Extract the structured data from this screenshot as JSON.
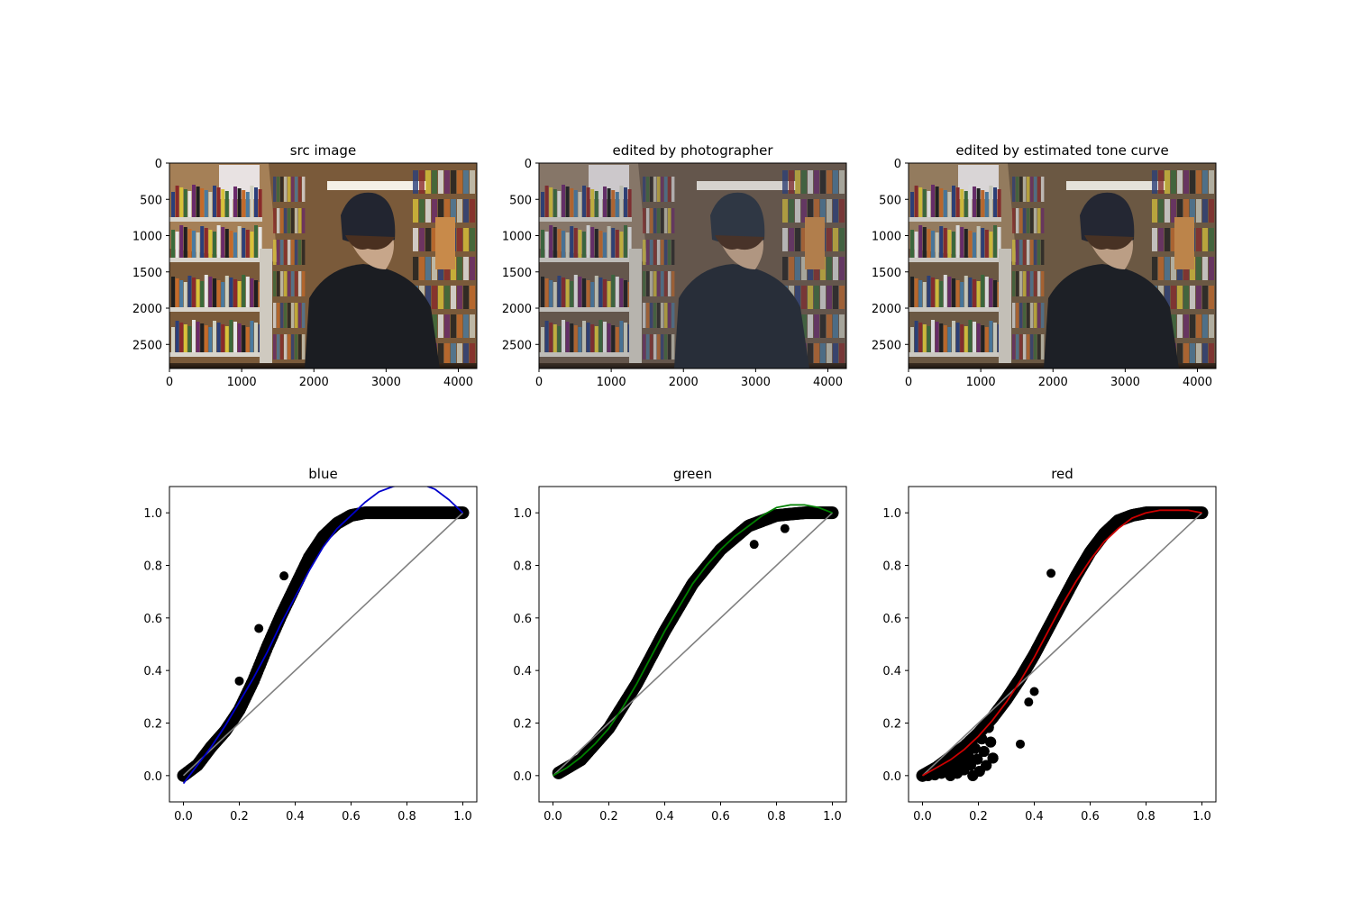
{
  "images": [
    {
      "title": "src image",
      "xticks": [
        "0",
        "1000",
        "2000",
        "3000",
        "4000"
      ],
      "yticks": [
        "0",
        "500",
        "1000",
        "1500",
        "2000",
        "2500"
      ],
      "xlim": [
        0,
        4256
      ],
      "ylim": [
        2832,
        0
      ],
      "tone": "src"
    },
    {
      "title": "edited by photographer",
      "xticks": [
        "0",
        "1000",
        "2000",
        "3000",
        "4000"
      ],
      "yticks": [
        "0",
        "500",
        "1000",
        "1500",
        "2000",
        "2500"
      ],
      "xlim": [
        0,
        4256
      ],
      "ylim": [
        2832,
        0
      ],
      "tone": "photographer"
    },
    {
      "title": "edited by estimated tone curve",
      "xticks": [
        "0",
        "1000",
        "2000",
        "3000",
        "4000"
      ],
      "yticks": [
        "0",
        "500",
        "1000",
        "1500",
        "2000",
        "2500"
      ],
      "xlim": [
        0,
        4256
      ],
      "ylim": [
        2832,
        0
      ],
      "tone": "estimated"
    }
  ],
  "chart_data": [
    {
      "type": "scatter",
      "title": "blue",
      "xlim": [
        -0.05,
        1.05
      ],
      "ylim": [
        -0.1,
        1.1
      ],
      "xticks": [
        "0.0",
        "0.2",
        "0.4",
        "0.6",
        "0.8",
        "1.0"
      ],
      "yticks": [
        "0.0",
        "0.2",
        "0.4",
        "0.6",
        "0.8",
        "1.0"
      ],
      "curve_color": "#0000cc",
      "scatter_color": "#000000",
      "identity_color": "#808080",
      "scatter_band": [
        [
          0.0,
          0.0
        ],
        [
          0.05,
          0.04
        ],
        [
          0.1,
          0.11
        ],
        [
          0.15,
          0.17
        ],
        [
          0.2,
          0.25
        ],
        [
          0.25,
          0.36
        ],
        [
          0.3,
          0.49
        ],
        [
          0.35,
          0.61
        ],
        [
          0.4,
          0.72
        ],
        [
          0.45,
          0.83
        ],
        [
          0.5,
          0.91
        ],
        [
          0.55,
          0.96
        ],
        [
          0.6,
          0.99
        ],
        [
          0.65,
          1.0
        ],
        [
          0.7,
          1.0
        ],
        [
          0.8,
          1.0
        ],
        [
          0.9,
          1.0
        ],
        [
          1.0,
          1.0
        ]
      ],
      "outliers": [
        [
          0.27,
          0.56
        ],
        [
          0.36,
          0.76
        ],
        [
          0.2,
          0.36
        ]
      ],
      "fit_curve": [
        [
          0.0,
          -0.03
        ],
        [
          0.05,
          0.04
        ],
        [
          0.1,
          0.11
        ],
        [
          0.15,
          0.19
        ],
        [
          0.2,
          0.28
        ],
        [
          0.25,
          0.37
        ],
        [
          0.3,
          0.47
        ],
        [
          0.35,
          0.58
        ],
        [
          0.4,
          0.68
        ],
        [
          0.45,
          0.78
        ],
        [
          0.5,
          0.87
        ],
        [
          0.55,
          0.94
        ],
        [
          0.6,
          0.99
        ],
        [
          0.65,
          1.04
        ],
        [
          0.7,
          1.08
        ],
        [
          0.75,
          1.1
        ],
        [
          0.8,
          1.11
        ],
        [
          0.85,
          1.11
        ],
        [
          0.9,
          1.09
        ],
        [
          0.95,
          1.05
        ],
        [
          1.0,
          1.0
        ]
      ]
    },
    {
      "type": "scatter",
      "title": "green",
      "xlim": [
        -0.05,
        1.05
      ],
      "ylim": [
        -0.1,
        1.1
      ],
      "xticks": [
        "0.0",
        "0.2",
        "0.4",
        "0.6",
        "0.8",
        "1.0"
      ],
      "yticks": [
        "0.0",
        "0.2",
        "0.4",
        "0.6",
        "0.8",
        "1.0"
      ],
      "curve_color": "#008000",
      "scatter_color": "#000000",
      "identity_color": "#808080",
      "scatter_band": [
        [
          0.02,
          0.01
        ],
        [
          0.1,
          0.06
        ],
        [
          0.2,
          0.18
        ],
        [
          0.3,
          0.35
        ],
        [
          0.4,
          0.55
        ],
        [
          0.5,
          0.73
        ],
        [
          0.6,
          0.86
        ],
        [
          0.7,
          0.95
        ],
        [
          0.8,
          0.99
        ],
        [
          0.9,
          1.0
        ],
        [
          1.0,
          1.0
        ]
      ],
      "outliers": [
        [
          0.72,
          0.88
        ],
        [
          0.83,
          0.94
        ]
      ],
      "fit_curve": [
        [
          0.0,
          0.0
        ],
        [
          0.05,
          0.03
        ],
        [
          0.1,
          0.07
        ],
        [
          0.15,
          0.12
        ],
        [
          0.2,
          0.18
        ],
        [
          0.25,
          0.26
        ],
        [
          0.3,
          0.35
        ],
        [
          0.35,
          0.45
        ],
        [
          0.4,
          0.55
        ],
        [
          0.45,
          0.64
        ],
        [
          0.5,
          0.73
        ],
        [
          0.55,
          0.8
        ],
        [
          0.6,
          0.86
        ],
        [
          0.65,
          0.91
        ],
        [
          0.7,
          0.95
        ],
        [
          0.75,
          0.99
        ],
        [
          0.8,
          1.02
        ],
        [
          0.85,
          1.03
        ],
        [
          0.9,
          1.03
        ],
        [
          0.95,
          1.02
        ],
        [
          1.0,
          1.0
        ]
      ]
    },
    {
      "type": "scatter",
      "title": "red",
      "xlim": [
        -0.05,
        1.05
      ],
      "ylim": [
        -0.1,
        1.1
      ],
      "xticks": [
        "0.0",
        "0.2",
        "0.4",
        "0.6",
        "0.8",
        "1.0"
      ],
      "yticks": [
        "0.0",
        "0.2",
        "0.4",
        "0.6",
        "0.8",
        "1.0"
      ],
      "curve_color": "#cc0000",
      "scatter_color": "#000000",
      "identity_color": "#808080",
      "scatter_band": [
        [
          0.0,
          0.0
        ],
        [
          0.05,
          0.03
        ],
        [
          0.1,
          0.07
        ],
        [
          0.15,
          0.11
        ],
        [
          0.2,
          0.16
        ],
        [
          0.25,
          0.22
        ],
        [
          0.3,
          0.29
        ],
        [
          0.35,
          0.37
        ],
        [
          0.4,
          0.46
        ],
        [
          0.45,
          0.56
        ],
        [
          0.5,
          0.66
        ],
        [
          0.55,
          0.76
        ],
        [
          0.6,
          0.85
        ],
        [
          0.65,
          0.92
        ],
        [
          0.7,
          0.97
        ],
        [
          0.75,
          0.99
        ],
        [
          0.8,
          1.0
        ],
        [
          0.9,
          1.0
        ],
        [
          1.0,
          1.0
        ]
      ],
      "outliers": [
        [
          0.46,
          0.77
        ],
        [
          0.4,
          0.32
        ],
        [
          0.38,
          0.28
        ],
        [
          0.35,
          0.12
        ]
      ],
      "fit_curve": [
        [
          0.0,
          0.0
        ],
        [
          0.05,
          0.03
        ],
        [
          0.1,
          0.06
        ],
        [
          0.15,
          0.1
        ],
        [
          0.2,
          0.15
        ],
        [
          0.25,
          0.21
        ],
        [
          0.3,
          0.28
        ],
        [
          0.35,
          0.36
        ],
        [
          0.4,
          0.45
        ],
        [
          0.45,
          0.55
        ],
        [
          0.5,
          0.65
        ],
        [
          0.55,
          0.74
        ],
        [
          0.6,
          0.82
        ],
        [
          0.65,
          0.89
        ],
        [
          0.7,
          0.94
        ],
        [
          0.75,
          0.98
        ],
        [
          0.8,
          1.0
        ],
        [
          0.85,
          1.01
        ],
        [
          0.9,
          1.01
        ],
        [
          0.95,
          1.01
        ],
        [
          1.0,
          1.0
        ]
      ]
    }
  ]
}
